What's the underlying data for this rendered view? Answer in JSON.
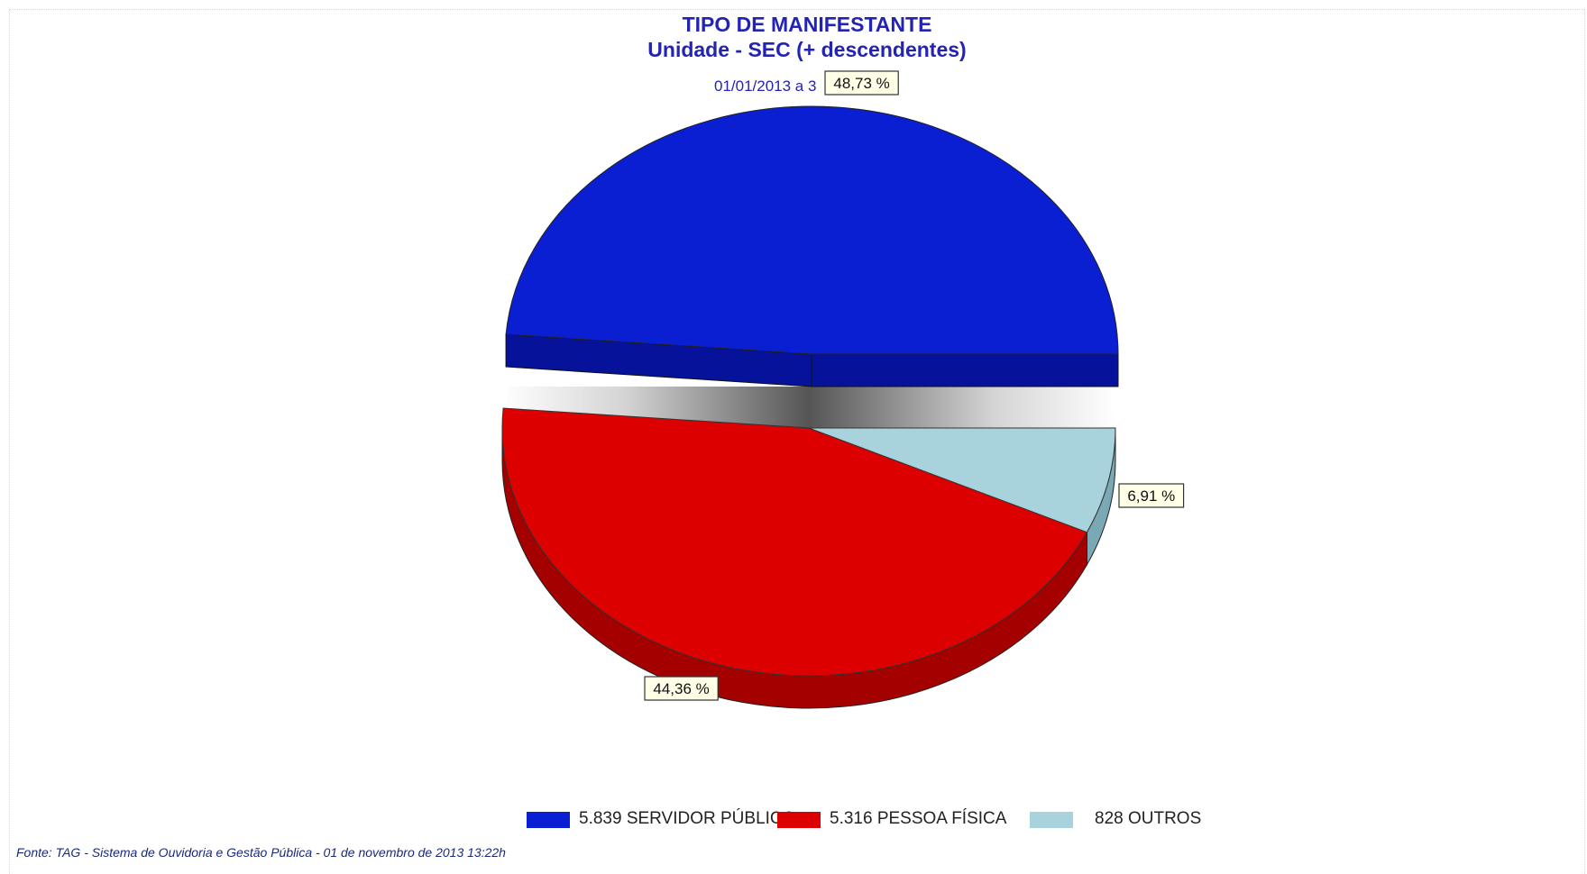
{
  "chart_data": {
    "type": "pie",
    "title": "TIPO DE MANIFESTANTE",
    "subtitle": "Unidade - SEC (+ descendentes)",
    "period": "01/01/2013 a 3",
    "slices": [
      {
        "label": "SERVIDOR PÚBLICO",
        "value": 5839,
        "value_text": "5.839",
        "percent": 48.73,
        "percent_text": "48,73 %",
        "color": "#0a1ed2",
        "side_color": "#06129a"
      },
      {
        "label": "PESSOA FÍSICA",
        "value": 5316,
        "value_text": "5.316",
        "percent": 44.36,
        "percent_text": "44,36 %",
        "color": "#dd0000",
        "side_color": "#a40000"
      },
      {
        "label": "OUTROS",
        "value": 828,
        "value_text": "828",
        "percent": 6.91,
        "percent_text": "6,91 %",
        "color": "#a8d2dc",
        "side_color": "#7aa8b4"
      }
    ],
    "legend_position": "bottom-center"
  },
  "footer": "Fonte: TAG - Sistema de Ouvidoria e Gestão Pública -  01  de  novembro de 2013  13:22h",
  "label_style": {
    "box_bg": "#ffffe8",
    "box_border": "#333333"
  }
}
